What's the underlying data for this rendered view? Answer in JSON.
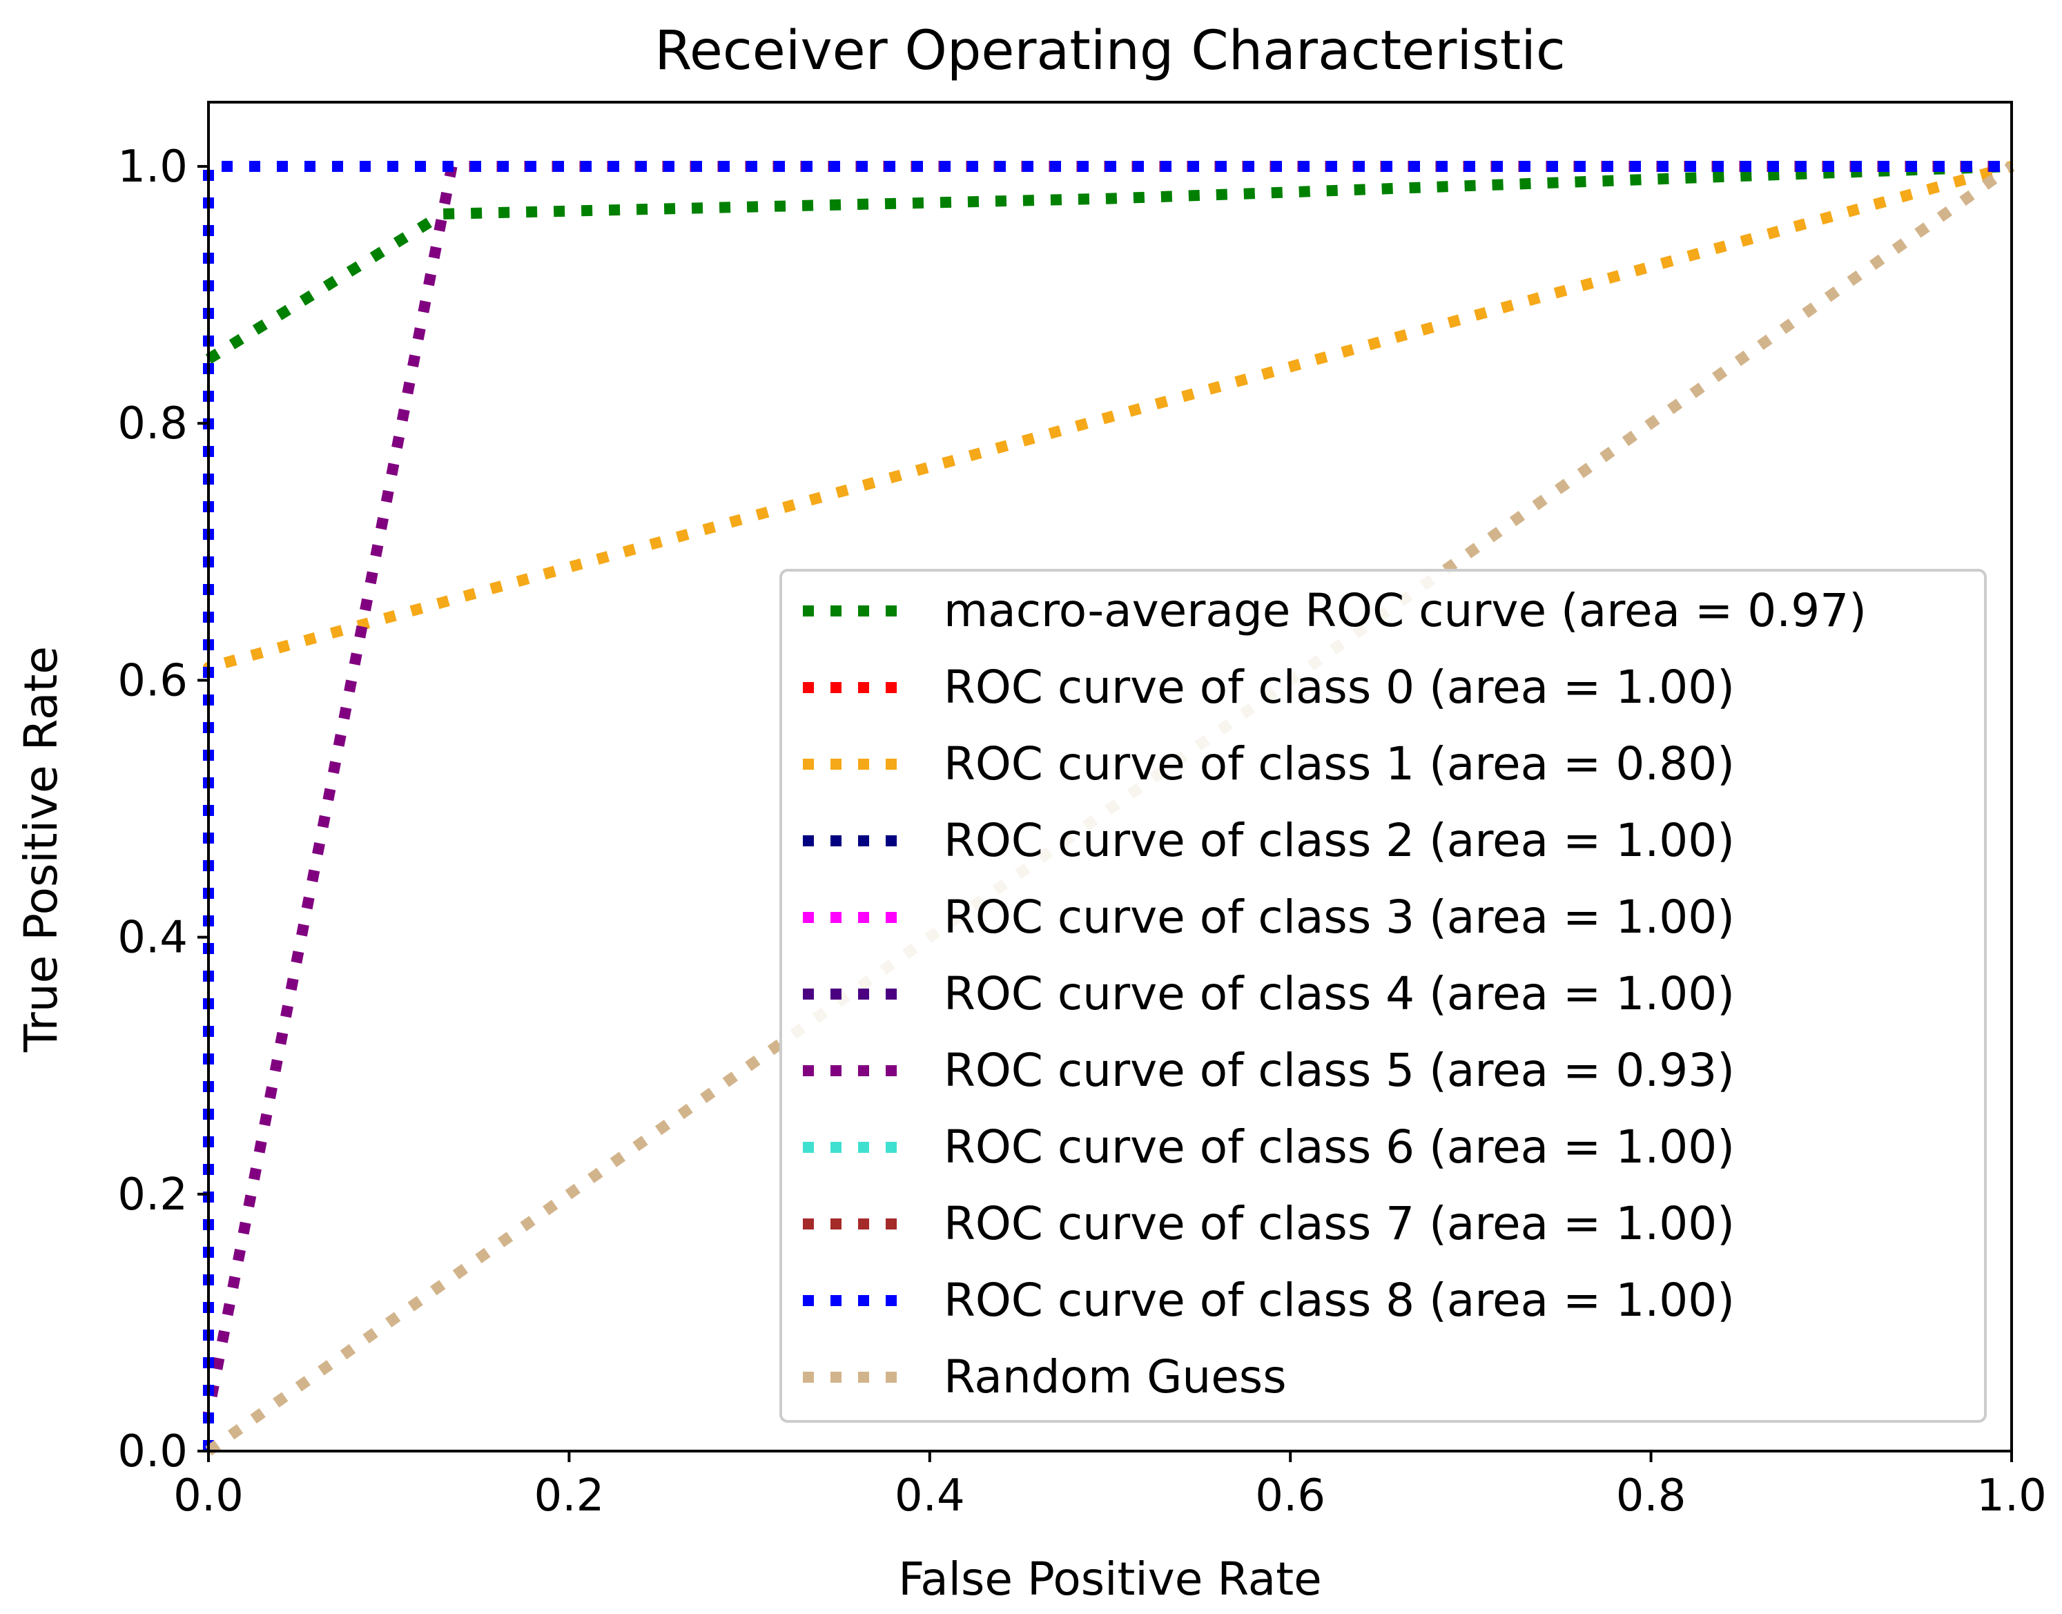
{
  "chart_data": {
    "type": "line",
    "title": "Receiver Operating Characteristic",
    "xlabel": "False Positive Rate",
    "ylabel": "True Positive Rate",
    "xlim": [
      0.0,
      1.0
    ],
    "ylim": [
      0.0,
      1.05
    ],
    "x_ticks": [
      0.0,
      0.2,
      0.4,
      0.6,
      0.8,
      1.0
    ],
    "y_ticks": [
      0.0,
      0.2,
      0.4,
      0.6,
      0.8,
      1.0
    ],
    "x_tick_labels": [
      "0.0",
      "0.2",
      "0.4",
      "0.6",
      "0.8",
      "1.0"
    ],
    "y_tick_labels": [
      "0.0",
      "0.2",
      "0.4",
      "0.6",
      "0.8",
      "1.0"
    ],
    "grid": false,
    "legend_position": "lower-right",
    "line_style": "dotted",
    "series": [
      {
        "name": "macro-average ROC curve (area = 0.97)",
        "color": "#008000",
        "x": [
          0.0,
          0.0,
          0.13,
          0.5,
          0.8,
          1.0
        ],
        "y": [
          0.85,
          0.85,
          0.963,
          0.975,
          0.99,
          1.0
        ]
      },
      {
        "name": "ROC curve of class 0 (area = 1.00)",
        "color": "#ff0000",
        "x": [
          0.0,
          0.0,
          1.0
        ],
        "y": [
          0.0,
          1.0,
          1.0
        ]
      },
      {
        "name": "ROC curve of class 1 (area = 0.80)",
        "color": "#f5a818",
        "x": [
          0.0,
          0.0,
          1.0
        ],
        "y": [
          0.0,
          0.61,
          1.0
        ]
      },
      {
        "name": "ROC curve of class 2 (area = 1.00)",
        "color": "#000080",
        "x": [
          0.0,
          0.0,
          1.0
        ],
        "y": [
          0.0,
          1.0,
          1.0
        ]
      },
      {
        "name": "ROC curve of class 3 (area = 1.00)",
        "color": "#ff00ff",
        "x": [
          0.0,
          0.0,
          1.0
        ],
        "y": [
          0.0,
          1.0,
          1.0
        ]
      },
      {
        "name": "ROC curve of class 4 (area = 1.00)",
        "color": "#4b0082",
        "x": [
          0.0,
          0.0,
          1.0
        ],
        "y": [
          0.0,
          1.0,
          1.0
        ]
      },
      {
        "name": "ROC curve of class 5 (area = 0.93)",
        "color": "#800080",
        "x": [
          0.0,
          0.0,
          0.135,
          1.0
        ],
        "y": [
          0.0,
          0.03,
          1.0,
          1.0
        ]
      },
      {
        "name": "ROC curve of class 6 (area = 1.00)",
        "color": "#40e0d0",
        "x": [
          0.0,
          0.0,
          1.0
        ],
        "y": [
          0.0,
          1.0,
          1.0
        ]
      },
      {
        "name": "ROC curve of class 7 (area = 1.00)",
        "color": "#a52a2a",
        "x": [
          0.0,
          0.0,
          1.0
        ],
        "y": [
          0.0,
          1.0,
          1.0
        ]
      },
      {
        "name": "ROC curve of class 8 (area = 1.00)",
        "color": "#0000ff",
        "x": [
          0.0,
          0.0,
          1.0
        ],
        "y": [
          0.0,
          1.0,
          1.0
        ]
      },
      {
        "name": "Random Guess",
        "color": "#d2b48c",
        "x": [
          0.0,
          1.0
        ],
        "y": [
          0.0,
          1.0
        ]
      }
    ]
  }
}
